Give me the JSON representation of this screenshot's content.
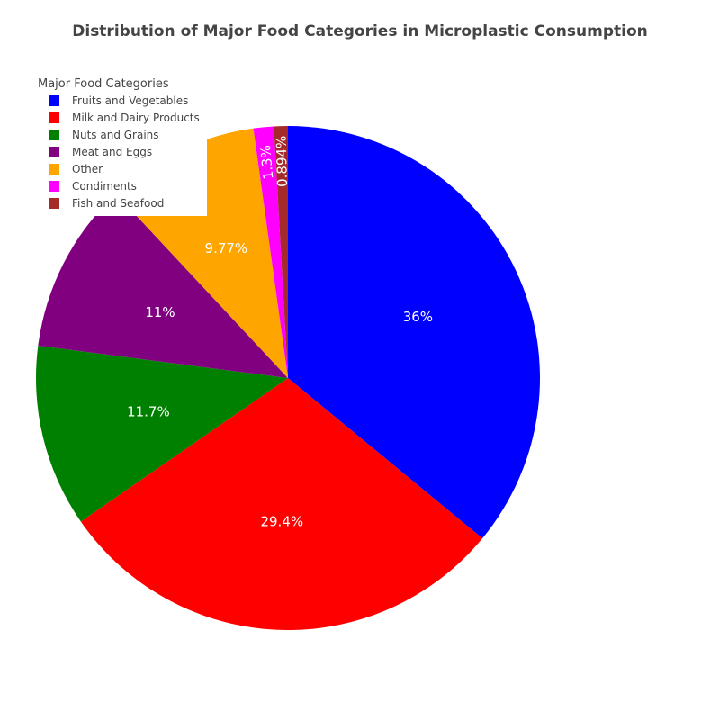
{
  "chart_data": {
    "type": "pie",
    "title": "Distribution of Major Food Categories in Microplastic Consumption",
    "legend_title": "Major Food Categories",
    "legend_position": "top-left",
    "direction": "clockwise",
    "sort": "descending",
    "categories": [
      "Fruits and Vegetables",
      "Milk and Dairy Products",
      "Nuts and Grains",
      "Meat and Eggs",
      "Other",
      "Condiments",
      "Fish and Seafood"
    ],
    "values": [
      36.0,
      29.4,
      11.7,
      11.0,
      9.77,
      1.3,
      0.894
    ],
    "labels": [
      "36%",
      "29.4%",
      "11.7%",
      "11%",
      "9.77%",
      "1.3%",
      "0.894%"
    ],
    "colors": [
      "#0000ff",
      "#ff0000",
      "#008000",
      "#800080",
      "#ffa500",
      "#ff00ff",
      "#a52a2a"
    ]
  }
}
